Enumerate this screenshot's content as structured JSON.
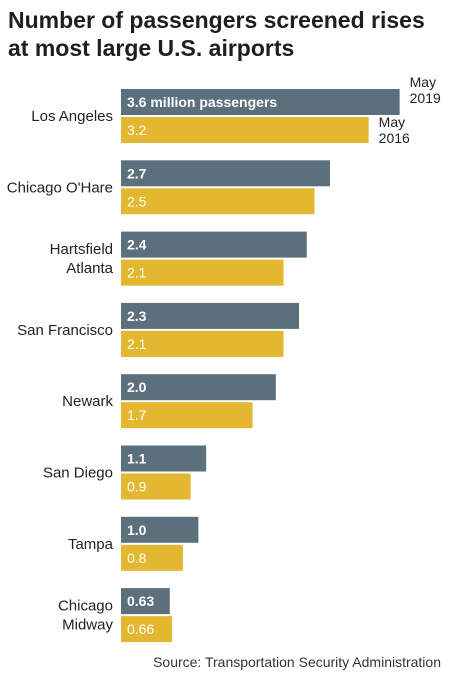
{
  "chart_data": {
    "type": "bar",
    "orientation": "horizontal",
    "title_lines": [
      "Number of passengers screened rises",
      "at most large U.S. airports"
    ],
    "categories": [
      [
        "Los Angeles"
      ],
      [
        "Chicago O'Hare"
      ],
      [
        "Hartsfield",
        "Atlanta"
      ],
      [
        "San Francisco"
      ],
      [
        "Newark"
      ],
      [
        "San Diego"
      ],
      [
        "Tampa"
      ],
      [
        "Chicago",
        "Midway"
      ]
    ],
    "series": [
      {
        "name_lines": [
          "May",
          "2019"
        ],
        "color": "#5b6f7d",
        "values": [
          3.6,
          2.7,
          2.4,
          2.3,
          2.0,
          1.1,
          1.0,
          0.63
        ],
        "labels": [
          "3.6 million passengers",
          "2.7",
          "2.4",
          "2.3",
          "2.0",
          "1.1",
          "1.0",
          "0.63"
        ]
      },
      {
        "name_lines": [
          "May",
          "2016"
        ],
        "color": "#e3b72f",
        "values": [
          3.2,
          2.5,
          2.1,
          2.1,
          1.7,
          0.9,
          0.8,
          0.66
        ],
        "labels": [
          "3.2",
          "2.5",
          "2.1",
          "2.1",
          "1.7",
          "0.9",
          "0.8",
          "0.66"
        ]
      }
    ],
    "xlabel": "",
    "ylabel": "",
    "grid": false,
    "legend": "inline-annotations"
  },
  "source": "Source: Transportation Security Administration"
}
